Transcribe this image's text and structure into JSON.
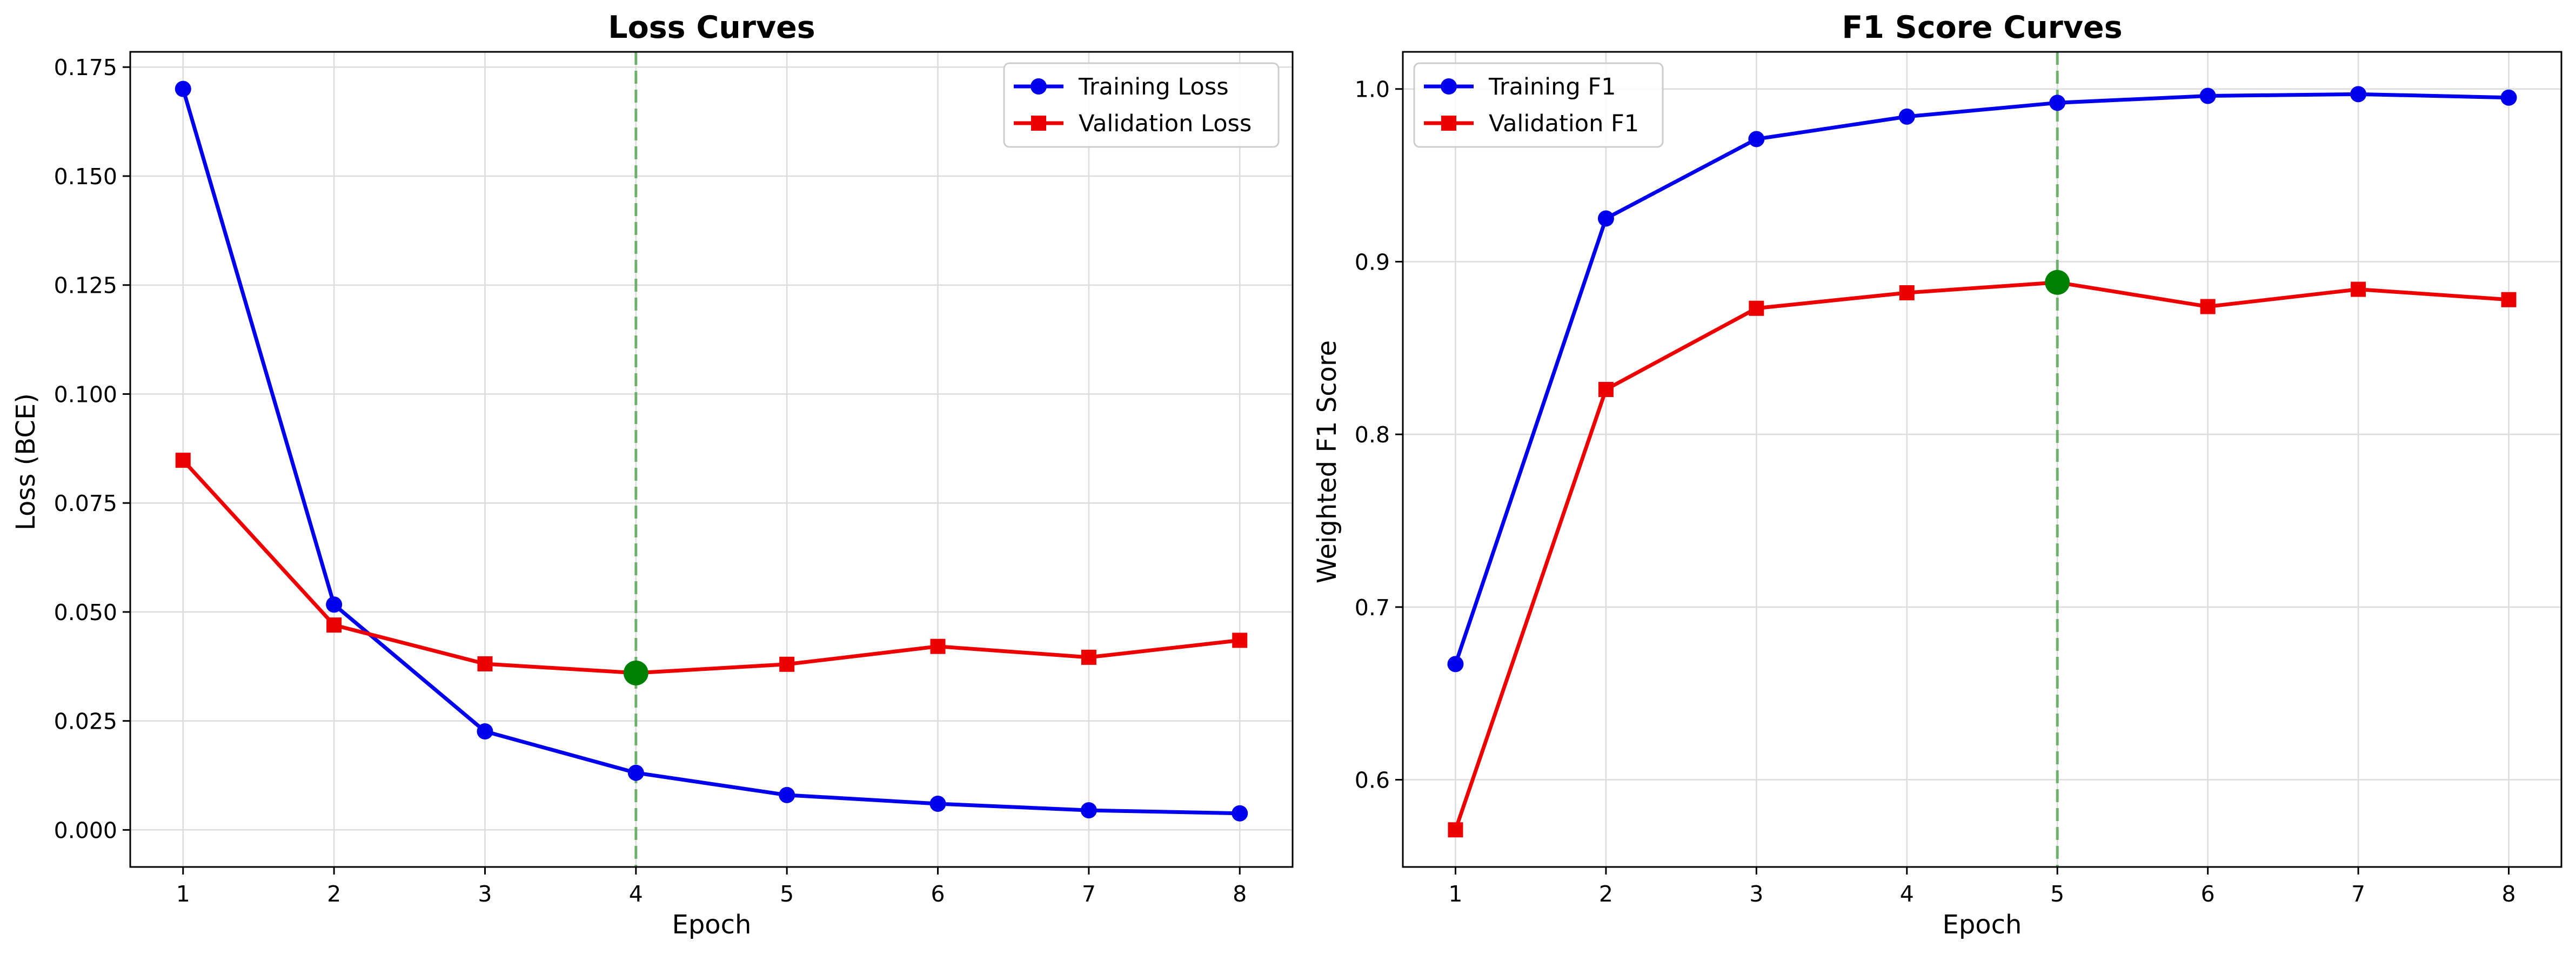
{
  "chart_data": [
    {
      "type": "line",
      "title": "Loss Curves",
      "xlabel": "Epoch",
      "ylabel": "Loss (BCE)",
      "x": [
        1,
        2,
        3,
        4,
        5,
        6,
        7,
        8
      ],
      "xlim": [
        0.65,
        8.35
      ],
      "ylim": [
        -0.0085,
        0.1785
      ],
      "xticks": [
        1,
        2,
        3,
        4,
        5,
        6,
        7,
        8
      ],
      "yticks": [
        0.0,
        0.025,
        0.05,
        0.075,
        0.1,
        0.125,
        0.15,
        0.175
      ],
      "ytick_labels": [
        "0.000",
        "0.025",
        "0.050",
        "0.075",
        "0.100",
        "0.125",
        "0.150",
        "0.175"
      ],
      "grid": true,
      "legend_position": "top-right",
      "series": [
        {
          "name": "Training Loss",
          "color": "#0000ee",
          "marker": "circle",
          "values": [
            0.17,
            0.0517,
            0.0226,
            0.0131,
            0.008,
            0.006,
            0.0045,
            0.0038
          ]
        },
        {
          "name": "Validation Loss",
          "color": "#ee0000",
          "marker": "square",
          "values": [
            0.0848,
            0.047,
            0.0381,
            0.036,
            0.038,
            0.0421,
            0.0396,
            0.0435
          ]
        }
      ],
      "best_epoch": {
        "x": 4,
        "y": 0.036,
        "line_color": "#58a858",
        "marker_color": "#008000"
      }
    },
    {
      "type": "line",
      "title": "F1 Score Curves",
      "xlabel": "Epoch",
      "ylabel": "Weighted F1 Score",
      "x": [
        1,
        2,
        3,
        4,
        5,
        6,
        7,
        8
      ],
      "xlim": [
        0.65,
        8.35
      ],
      "ylim": [
        0.5495,
        1.0215
      ],
      "xticks": [
        1,
        2,
        3,
        4,
        5,
        6,
        7,
        8
      ],
      "yticks": [
        0.6,
        0.7,
        0.8,
        0.9,
        1.0
      ],
      "ytick_labels": [
        "0.6",
        "0.7",
        "0.8",
        "0.9",
        "1.0"
      ],
      "grid": true,
      "legend_position": "top-left",
      "series": [
        {
          "name": "Training F1",
          "color": "#0000ee",
          "marker": "circle",
          "values": [
            0.667,
            0.925,
            0.971,
            0.984,
            0.992,
            0.996,
            0.997,
            0.995
          ]
        },
        {
          "name": "Validation F1",
          "color": "#ee0000",
          "marker": "square",
          "values": [
            0.571,
            0.826,
            0.873,
            0.882,
            0.888,
            0.874,
            0.884,
            0.878
          ]
        }
      ],
      "best_epoch": {
        "x": 5,
        "y": 0.888,
        "line_color": "#58a858",
        "marker_color": "#008000"
      }
    }
  ]
}
